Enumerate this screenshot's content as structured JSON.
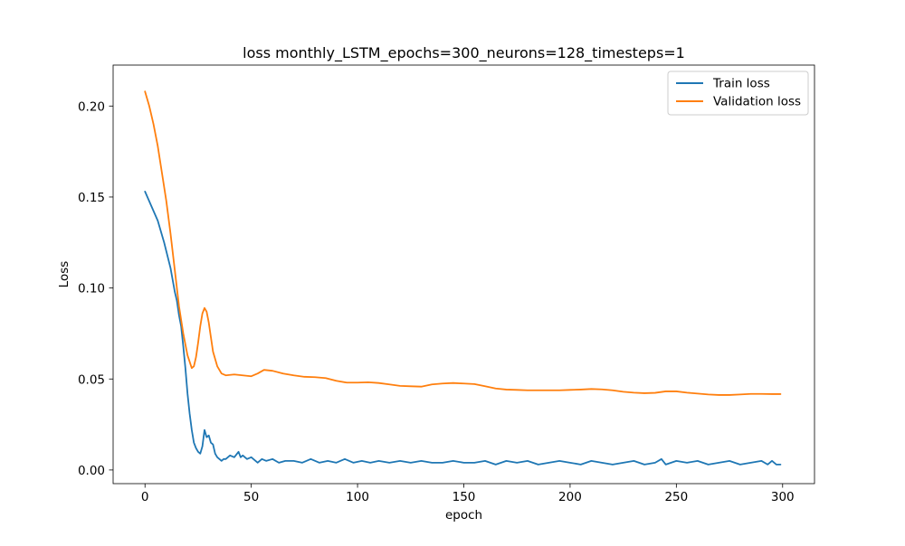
{
  "chart_data": {
    "type": "line",
    "title": "loss monthly_LSTM_epochs=300_neurons=128_timesteps=1",
    "xlabel": "epoch",
    "ylabel": "Loss",
    "xlim": [
      -15,
      315
    ],
    "ylim": [
      -0.0075,
      0.2225
    ],
    "xticks": [
      0,
      50,
      100,
      150,
      200,
      250,
      300
    ],
    "xtick_labels": [
      "0",
      "50",
      "100",
      "150",
      "200",
      "250",
      "300"
    ],
    "yticks": [
      0.0,
      0.05,
      0.1,
      0.15,
      0.2
    ],
    "ytick_labels": [
      "0.00",
      "0.05",
      "0.10",
      "0.15",
      "0.20"
    ],
    "grid": false,
    "legend_position": "upper right",
    "series": [
      {
        "name": "Train loss",
        "color": "#1f77b4",
        "points": [
          [
            0,
            0.153
          ],
          [
            3,
            0.145
          ],
          [
            6,
            0.137
          ],
          [
            9,
            0.125
          ],
          [
            12,
            0.111
          ],
          [
            14,
            0.098
          ],
          [
            15,
            0.093
          ],
          [
            16,
            0.085
          ],
          [
            17,
            0.079
          ],
          [
            18,
            0.068
          ],
          [
            19,
            0.056
          ],
          [
            20,
            0.042
          ],
          [
            21,
            0.031
          ],
          [
            22,
            0.022
          ],
          [
            23,
            0.015
          ],
          [
            24,
            0.012
          ],
          [
            25,
            0.01
          ],
          [
            26,
            0.009
          ],
          [
            27,
            0.013
          ],
          [
            28,
            0.022
          ],
          [
            29,
            0.018
          ],
          [
            30,
            0.019
          ],
          [
            31,
            0.015
          ],
          [
            32,
            0.014
          ],
          [
            33,
            0.009
          ],
          [
            34,
            0.007
          ],
          [
            35,
            0.006
          ],
          [
            36,
            0.005
          ],
          [
            37,
            0.006
          ],
          [
            38,
            0.006
          ],
          [
            40,
            0.008
          ],
          [
            42,
            0.007
          ],
          [
            44,
            0.01
          ],
          [
            45,
            0.007
          ],
          [
            46,
            0.008
          ],
          [
            48,
            0.006
          ],
          [
            50,
            0.007
          ],
          [
            52,
            0.005
          ],
          [
            53,
            0.004
          ],
          [
            55,
            0.006
          ],
          [
            57,
            0.005
          ],
          [
            60,
            0.006
          ],
          [
            63,
            0.004
          ],
          [
            66,
            0.005
          ],
          [
            70,
            0.005
          ],
          [
            74,
            0.004
          ],
          [
            78,
            0.006
          ],
          [
            82,
            0.004
          ],
          [
            86,
            0.005
          ],
          [
            90,
            0.004
          ],
          [
            94,
            0.006
          ],
          [
            98,
            0.004
          ],
          [
            102,
            0.005
          ],
          [
            106,
            0.004
          ],
          [
            110,
            0.005
          ],
          [
            115,
            0.004
          ],
          [
            120,
            0.005
          ],
          [
            125,
            0.004
          ],
          [
            130,
            0.005
          ],
          [
            135,
            0.004
          ],
          [
            140,
            0.004
          ],
          [
            145,
            0.005
          ],
          [
            150,
            0.004
          ],
          [
            155,
            0.004
          ],
          [
            160,
            0.005
          ],
          [
            165,
            0.003
          ],
          [
            170,
            0.005
          ],
          [
            175,
            0.004
          ],
          [
            180,
            0.005
          ],
          [
            185,
            0.003
          ],
          [
            190,
            0.004
          ],
          [
            195,
            0.005
          ],
          [
            200,
            0.004
          ],
          [
            205,
            0.003
          ],
          [
            210,
            0.005
          ],
          [
            215,
            0.004
          ],
          [
            220,
            0.003
          ],
          [
            225,
            0.004
          ],
          [
            230,
            0.005
          ],
          [
            235,
            0.003
          ],
          [
            240,
            0.004
          ],
          [
            243,
            0.006
          ],
          [
            245,
            0.003
          ],
          [
            250,
            0.005
          ],
          [
            255,
            0.004
          ],
          [
            260,
            0.005
          ],
          [
            265,
            0.003
          ],
          [
            270,
            0.004
          ],
          [
            275,
            0.005
          ],
          [
            280,
            0.003
          ],
          [
            285,
            0.004
          ],
          [
            290,
            0.005
          ],
          [
            293,
            0.003
          ],
          [
            295,
            0.005
          ],
          [
            297,
            0.003
          ],
          [
            299,
            0.003
          ]
        ]
      },
      {
        "name": "Validation loss",
        "color": "#ff7f0e",
        "points": [
          [
            0,
            0.208
          ],
          [
            2,
            0.2
          ],
          [
            4,
            0.19
          ],
          [
            6,
            0.178
          ],
          [
            8,
            0.163
          ],
          [
            10,
            0.148
          ],
          [
            12,
            0.13
          ],
          [
            14,
            0.11
          ],
          [
            16,
            0.09
          ],
          [
            18,
            0.075
          ],
          [
            20,
            0.063
          ],
          [
            22,
            0.056
          ],
          [
            23,
            0.057
          ],
          [
            24,
            0.062
          ],
          [
            25,
            0.07
          ],
          [
            26,
            0.079
          ],
          [
            27,
            0.086
          ],
          [
            28,
            0.089
          ],
          [
            29,
            0.087
          ],
          [
            30,
            0.081
          ],
          [
            31,
            0.073
          ],
          [
            32,
            0.065
          ],
          [
            34,
            0.057
          ],
          [
            36,
            0.053
          ],
          [
            38,
            0.052
          ],
          [
            42,
            0.0525
          ],
          [
            46,
            0.052
          ],
          [
            50,
            0.0515
          ],
          [
            53,
            0.053
          ],
          [
            56,
            0.055
          ],
          [
            60,
            0.0545
          ],
          [
            65,
            0.053
          ],
          [
            70,
            0.052
          ],
          [
            75,
            0.0512
          ],
          [
            80,
            0.051
          ],
          [
            85,
            0.0505
          ],
          [
            90,
            0.049
          ],
          [
            95,
            0.048
          ],
          [
            100,
            0.048
          ],
          [
            105,
            0.0482
          ],
          [
            110,
            0.0478
          ],
          [
            115,
            0.047
          ],
          [
            120,
            0.0462
          ],
          [
            125,
            0.046
          ],
          [
            130,
            0.0458
          ],
          [
            135,
            0.047
          ],
          [
            140,
            0.0475
          ],
          [
            145,
            0.0478
          ],
          [
            150,
            0.0475
          ],
          [
            155,
            0.0472
          ],
          [
            160,
            0.046
          ],
          [
            165,
            0.0448
          ],
          [
            170,
            0.0442
          ],
          [
            175,
            0.044
          ],
          [
            180,
            0.0438
          ],
          [
            185,
            0.0438
          ],
          [
            190,
            0.0438
          ],
          [
            195,
            0.0438
          ],
          [
            200,
            0.044
          ],
          [
            205,
            0.0442
          ],
          [
            210,
            0.0445
          ],
          [
            215,
            0.0443
          ],
          [
            220,
            0.0438
          ],
          [
            225,
            0.043
          ],
          [
            230,
            0.0425
          ],
          [
            235,
            0.0422
          ],
          [
            240,
            0.0424
          ],
          [
            245,
            0.0432
          ],
          [
            250,
            0.0432
          ],
          [
            255,
            0.0425
          ],
          [
            260,
            0.042
          ],
          [
            265,
            0.0415
          ],
          [
            270,
            0.0412
          ],
          [
            275,
            0.0412
          ],
          [
            280,
            0.0415
          ],
          [
            285,
            0.0418
          ],
          [
            290,
            0.0418
          ],
          [
            295,
            0.0417
          ],
          [
            299,
            0.0417
          ]
        ]
      }
    ]
  }
}
